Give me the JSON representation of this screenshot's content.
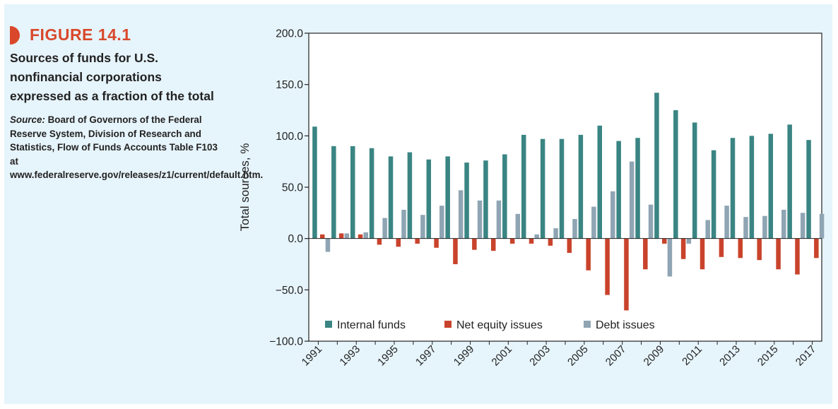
{
  "figure": {
    "label": "FIGURE 14.1",
    "description": "Sources of funds for U.S. nonfinancial corporations expressed as a fraction of the total",
    "source_label": "Source:",
    "source_text": "Board of Governors of the Federal Reserve System, Division of Research and Statistics, Flow of Funds Accounts Table F103 at www.federalreserve.gov/releases/z1/current/default.htm."
  },
  "colors": {
    "internal": "#3a8583",
    "equity": "#c9432c",
    "debt": "#8fa5b4",
    "accent": "#d9482b",
    "panel": "#e6f4fb"
  },
  "chart_data": {
    "type": "bar",
    "ylabel": "Total sources, %",
    "xlabel": "",
    "ylim": [
      -100,
      200
    ],
    "yticks": [
      200,
      150,
      100,
      50,
      0,
      -50,
      -100
    ],
    "ytick_labels": [
      "200.0",
      "150.0",
      "100.0",
      "50.0",
      "0.0",
      "−50.0",
      "−100.0"
    ],
    "categories": [
      1991,
      1992,
      1993,
      1994,
      1995,
      1996,
      1997,
      1998,
      1999,
      2000,
      2001,
      2002,
      2003,
      2004,
      2005,
      2006,
      2007,
      2008,
      2009,
      2010,
      2011,
      2012,
      2013,
      2014,
      2015,
      2016,
      2017
    ],
    "xtick_labels": [
      "1991",
      "1993",
      "1995",
      "1997",
      "1999",
      "2001",
      "2003",
      "2005",
      "2007",
      "2009",
      "2011",
      "2013",
      "2015",
      "2017"
    ],
    "grid": false,
    "legend_position": "bottom-left",
    "series": [
      {
        "name": "Internal funds",
        "color_key": "internal",
        "values": [
          109,
          90,
          90,
          88,
          80,
          84,
          77,
          80,
          74,
          76,
          82,
          101,
          97,
          97,
          101,
          110,
          95,
          98,
          142,
          125,
          113,
          86,
          98,
          100,
          102,
          111,
          96
        ]
      },
      {
        "name": "Net equity issues",
        "color_key": "equity",
        "values": [
          4,
          5,
          4,
          -6,
          -8,
          -5,
          -9,
          -25,
          -11,
          -12,
          -5,
          -5,
          -7,
          -14,
          -31,
          -55,
          -70,
          -30,
          -5,
          -20,
          -30,
          -18,
          -19,
          -21,
          -30,
          -35,
          -19
        ]
      },
      {
        "name": "Debt issues",
        "color_key": "debt",
        "values": [
          -13,
          5,
          6,
          20,
          28,
          23,
          32,
          47,
          37,
          37,
          24,
          4,
          10,
          19,
          31,
          46,
          75,
          33,
          -37,
          -5,
          18,
          32,
          21,
          22,
          28,
          25,
          24
        ]
      }
    ]
  }
}
